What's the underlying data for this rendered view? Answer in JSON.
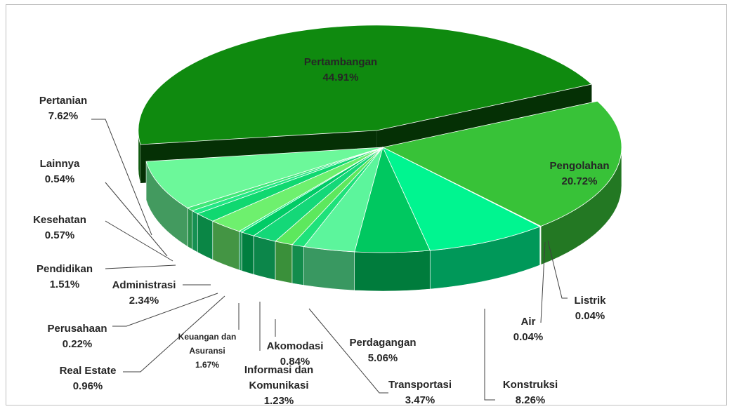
{
  "chart_data": {
    "type": "pie3d",
    "categories": [
      "Pertambangan",
      "Pengolahan",
      "Listrik",
      "Air",
      "Konstruksi",
      "Perdagangan",
      "Transportasi",
      "Akomodasi",
      "Informasi dan Komunikasi",
      "Keuangan dan Asuransi",
      "Real Estate",
      "Perusahaan",
      "Administrasi",
      "Pendidikan",
      "Kesehatan",
      "Lainnya",
      "Pertanian"
    ],
    "values": [
      44.91,
      20.72,
      0.04,
      0.04,
      8.26,
      5.06,
      3.47,
      0.84,
      1.23,
      1.67,
      0.96,
      0.22,
      2.34,
      1.51,
      0.57,
      0.54,
      7.62
    ],
    "value_labels": [
      "44.91%",
      "20.72%",
      "0.04%",
      "0.04%",
      "8.26%",
      "5.06%",
      "3.47%",
      "0.84%",
      "1.23%",
      "1.67%",
      "0.96%",
      "0.22%",
      "2.34%",
      "1.51%",
      "0.57%",
      "0.54%",
      "7.62%"
    ],
    "colors": [
      "#0f8a0f",
      "#38c238",
      "#2ee06a",
      "#22d46e",
      "#00f590",
      "#00c860",
      "#5cf59c",
      "#1ee27a",
      "#5de85d",
      "#14d878",
      "#00cc66",
      "#2ff08a",
      "#6ef06e",
      "#10d870",
      "#22e884",
      "#40e878",
      "#6cf89a"
    ]
  }
}
